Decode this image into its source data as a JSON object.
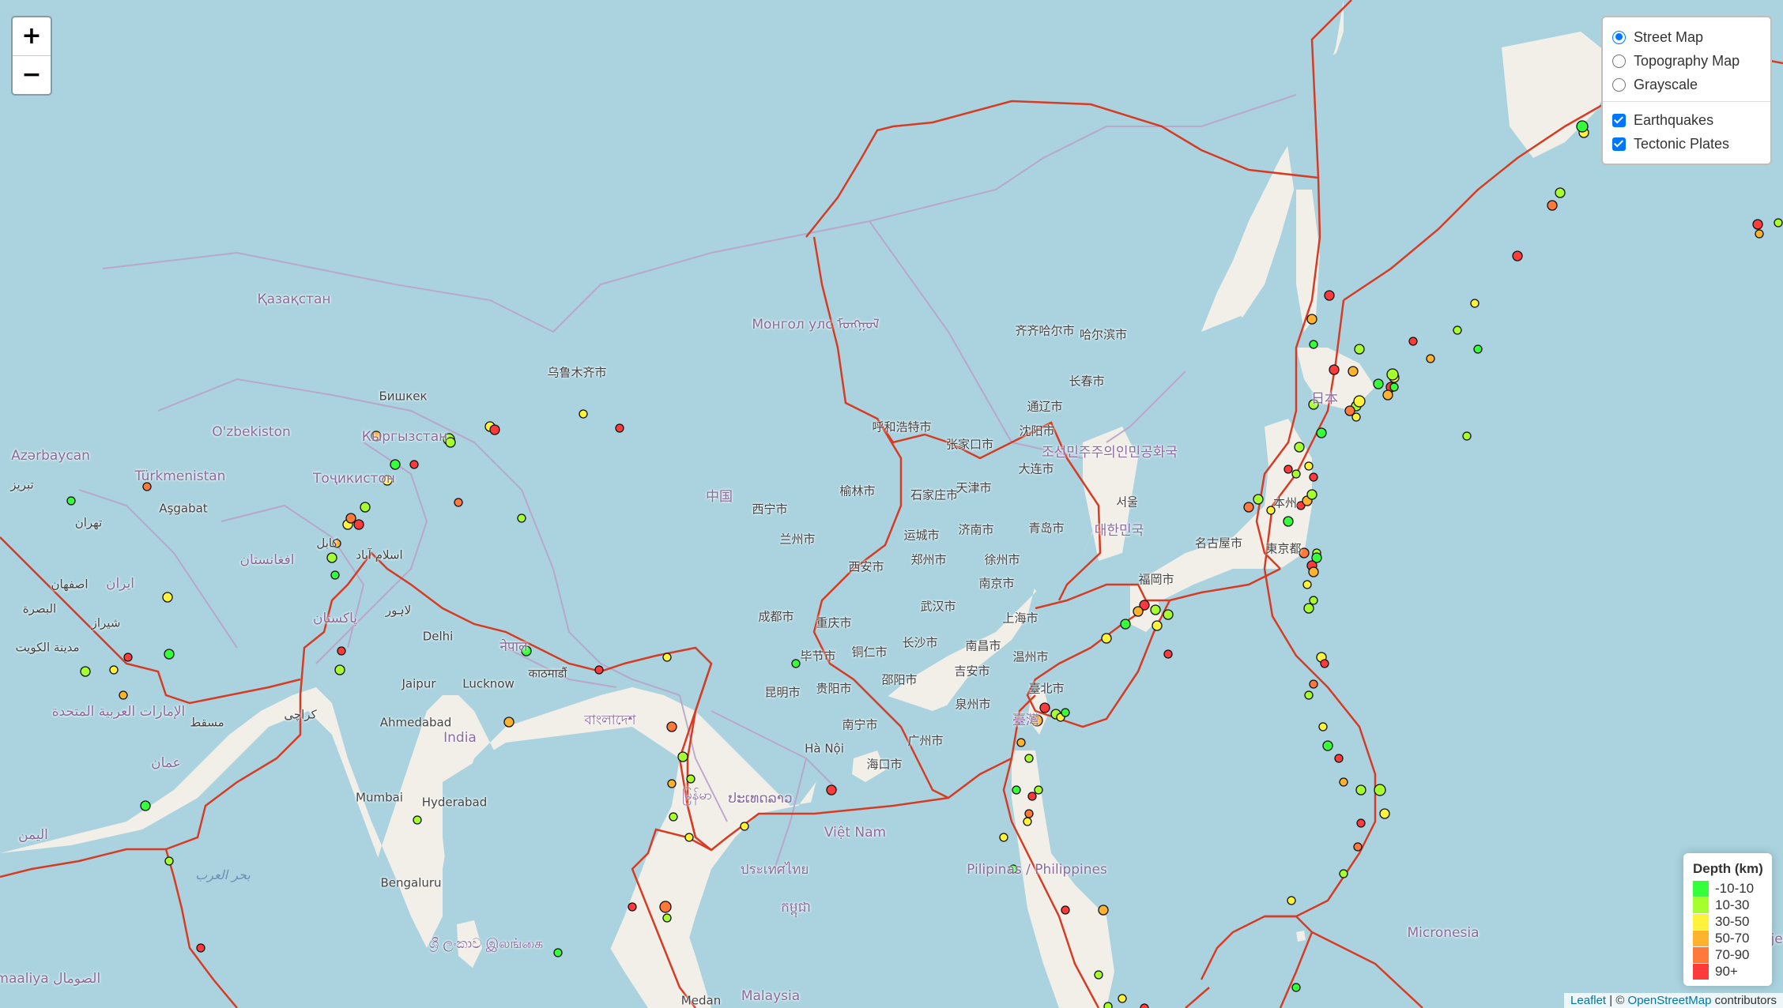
{
  "zoom": {
    "in_label": "+",
    "out_label": "−"
  },
  "layers": {
    "base": [
      {
        "label": "Street Map",
        "checked": true
      },
      {
        "label": "Topography Map",
        "checked": false
      },
      {
        "label": "Grayscale",
        "checked": false
      }
    ],
    "overlays": [
      {
        "label": "Earthquakes",
        "checked": true
      },
      {
        "label": "Tectonic Plates",
        "checked": true
      }
    ]
  },
  "legend": {
    "title": "Depth (km)",
    "items": [
      {
        "label": "-10-10",
        "color": "#34ff3a"
      },
      {
        "label": "10-30",
        "color": "#a6ff2d"
      },
      {
        "label": "30-50",
        "color": "#fff23a"
      },
      {
        "label": "50-70",
        "color": "#ffb22c"
      },
      {
        "label": "70-90",
        "color": "#ff7a3a"
      },
      {
        "label": "90+",
        "color": "#ff3a3a"
      }
    ]
  },
  "attribution": {
    "leaflet": "Leaflet",
    "separator": " | © ",
    "osm": "OpenStreetMap",
    "suffix": " contributors"
  },
  "colors": {
    "land": "#f2efe9",
    "water": "#aad3df",
    "plates": "#d63c24",
    "borders": "#b9a3c8"
  },
  "map_labels": [
    {
      "text": "Қазақстан",
      "cls": "country"
    },
    {
      "text": "Монгол улс ᠮᠣᠩᠭᠣᠯ",
      "cls": "country"
    },
    {
      "text": "中国",
      "cls": "country"
    },
    {
      "text": "O'zbekiston",
      "cls": "country"
    },
    {
      "text": "Türkmenistan",
      "cls": "country"
    },
    {
      "text": "Azərbaycan",
      "cls": "country"
    },
    {
      "text": "Кыргызстан",
      "cls": "country"
    },
    {
      "text": "Тоҷикистон",
      "cls": "country"
    },
    {
      "text": "افغانستان",
      "cls": "country"
    },
    {
      "text": "ایران",
      "cls": "country"
    },
    {
      "text": "پاکستان",
      "cls": "country"
    },
    {
      "text": "India",
      "cls": "country"
    },
    {
      "text": "नेपाल",
      "cls": "country"
    },
    {
      "text": "বাংলাদেশ",
      "cls": "country"
    },
    {
      "text": "မြန်မာ",
      "cls": "country"
    },
    {
      "text": "ປະເທດລາວ",
      "cls": "country"
    },
    {
      "text": "ประเทศไทย",
      "cls": "country"
    },
    {
      "text": "Việt Nam",
      "cls": "country"
    },
    {
      "text": "កម្ពុជា",
      "cls": "country"
    },
    {
      "text": "Malaysia",
      "cls": "country"
    },
    {
      "text": "Pilipinas / Philippines",
      "cls": "country"
    },
    {
      "text": "日本",
      "cls": "country"
    },
    {
      "text": "조선민주주의인민공화국",
      "cls": "country"
    },
    {
      "text": "대한민국",
      "cls": "country"
    },
    {
      "text": "臺灣",
      "cls": "country"
    },
    {
      "text": "Micronesia",
      "cls": "country"
    },
    {
      "text": "Majel",
      "cls": "country"
    },
    {
      "text": "الإمارات العربية المتحدة",
      "cls": "country"
    },
    {
      "text": "عمان",
      "cls": "country"
    },
    {
      "text": "اليمن",
      "cls": "country"
    },
    {
      "text": "Soomaaliya الصومال",
      "cls": "country"
    },
    {
      "text": "ශ්‍රී ලංකාව இலங்கை",
      "cls": "country"
    },
    {
      "text": "بحر العرب",
      "cls": "water"
    },
    {
      "text": "乌鲁木齐市",
      "cls": ""
    },
    {
      "text": "Бишкек",
      "cls": ""
    },
    {
      "text": "Aşgabat",
      "cls": ""
    },
    {
      "text": "تهران",
      "cls": ""
    },
    {
      "text": "تبریز",
      "cls": ""
    },
    {
      "text": "اصفهان",
      "cls": ""
    },
    {
      "text": "شیراز",
      "cls": ""
    },
    {
      "text": "البصرة",
      "cls": ""
    },
    {
      "text": "مدينة الكويت",
      "cls": ""
    },
    {
      "text": "مسقط",
      "cls": ""
    },
    {
      "text": "کابل",
      "cls": ""
    },
    {
      "text": "اسلام آباد",
      "cls": ""
    },
    {
      "text": "لاہور",
      "cls": ""
    },
    {
      "text": "کراچی",
      "cls": ""
    },
    {
      "text": "Delhi",
      "cls": ""
    },
    {
      "text": "Jaipur",
      "cls": ""
    },
    {
      "text": "Lucknow",
      "cls": ""
    },
    {
      "text": "Ahmedabad",
      "cls": ""
    },
    {
      "text": "Mumbai",
      "cls": ""
    },
    {
      "text": "Hyderabad",
      "cls": ""
    },
    {
      "text": "Bengaluru",
      "cls": ""
    },
    {
      "text": "काठमाडौं",
      "cls": ""
    },
    {
      "text": "西宁市",
      "cls": ""
    },
    {
      "text": "兰州市",
      "cls": ""
    },
    {
      "text": "成都市",
      "cls": ""
    },
    {
      "text": "重庆市",
      "cls": ""
    },
    {
      "text": "昆明市",
      "cls": ""
    },
    {
      "text": "毕节市",
      "cls": ""
    },
    {
      "text": "贵阳市",
      "cls": ""
    },
    {
      "text": "铜仁市",
      "cls": ""
    },
    {
      "text": "邵阳市",
      "cls": ""
    },
    {
      "text": "南宁市",
      "cls": ""
    },
    {
      "text": "海口市",
      "cls": ""
    },
    {
      "text": "Hà Nội",
      "cls": ""
    },
    {
      "text": "广州市",
      "cls": ""
    },
    {
      "text": "长沙市",
      "cls": ""
    },
    {
      "text": "武汉市",
      "cls": ""
    },
    {
      "text": "南昌市",
      "cls": ""
    },
    {
      "text": "吉安市",
      "cls": ""
    },
    {
      "text": "泉州市",
      "cls": ""
    },
    {
      "text": "温州市",
      "cls": ""
    },
    {
      "text": "上海市",
      "cls": ""
    },
    {
      "text": "南京市",
      "cls": ""
    },
    {
      "text": "徐州市",
      "cls": ""
    },
    {
      "text": "郑州市",
      "cls": ""
    },
    {
      "text": "西安市",
      "cls": ""
    },
    {
      "text": "运城市",
      "cls": ""
    },
    {
      "text": "榆林市",
      "cls": ""
    },
    {
      "text": "石家庄市",
      "cls": ""
    },
    {
      "text": "天津市",
      "cls": ""
    },
    {
      "text": "济南市",
      "cls": ""
    },
    {
      "text": "青岛市",
      "cls": ""
    },
    {
      "text": "大连市",
      "cls": ""
    },
    {
      "text": "沈阳市",
      "cls": ""
    },
    {
      "text": "通辽市",
      "cls": ""
    },
    {
      "text": "长春市",
      "cls": ""
    },
    {
      "text": "齐齐哈尔市",
      "cls": ""
    },
    {
      "text": "哈尔滨市",
      "cls": ""
    },
    {
      "text": "呼和浩特市",
      "cls": ""
    },
    {
      "text": "张家口市",
      "cls": ""
    },
    {
      "text": "臺北市",
      "cls": ""
    },
    {
      "text": "서울",
      "cls": ""
    },
    {
      "text": "福岡市",
      "cls": ""
    },
    {
      "text": "名古屋市",
      "cls": ""
    },
    {
      "text": "東京都",
      "cls": ""
    },
    {
      "text": "本州",
      "cls": ""
    },
    {
      "text": "Medan",
      "cls": ""
    }
  ],
  "earthquakes": [
    {
      "depth": 5
    },
    {
      "depth": 12
    },
    {
      "depth": 35
    },
    {
      "depth": 95
    },
    {
      "depth": 55
    },
    {
      "depth": 8
    },
    {
      "depth": 20
    },
    {
      "depth": 100
    },
    {
      "depth": 75
    },
    {
      "depth": 40
    },
    {
      "depth": 3
    },
    {
      "depth": 15
    },
    {
      "depth": 110
    },
    {
      "depth": 60
    },
    {
      "depth": 28
    },
    {
      "depth": 9
    },
    {
      "depth": 45
    },
    {
      "depth": 150
    },
    {
      "depth": 80
    },
    {
      "depth": 18
    },
    {
      "depth": 33
    },
    {
      "depth": 6
    },
    {
      "depth": 120
    },
    {
      "depth": 65
    },
    {
      "depth": 25
    },
    {
      "depth": 10
    },
    {
      "depth": 48
    },
    {
      "depth": 200
    },
    {
      "depth": 72
    },
    {
      "depth": 14
    },
    {
      "depth": 2
    },
    {
      "depth": 38
    },
    {
      "depth": 92
    },
    {
      "depth": 58
    },
    {
      "depth": 22
    },
    {
      "depth": 7
    },
    {
      "depth": 130
    },
    {
      "depth": 42
    },
    {
      "depth": 85
    },
    {
      "depth": 16
    },
    {
      "depth": 31
    },
    {
      "depth": 4
    },
    {
      "depth": 105
    },
    {
      "depth": 53
    },
    {
      "depth": 26
    },
    {
      "depth": 11
    },
    {
      "depth": 36
    },
    {
      "depth": 300
    },
    {
      "depth": 78
    },
    {
      "depth": 19
    },
    {
      "depth": 44
    },
    {
      "depth": 1
    },
    {
      "depth": 98
    },
    {
      "depth": 62
    },
    {
      "depth": 24
    },
    {
      "depth": 13
    },
    {
      "depth": 49
    },
    {
      "depth": 140
    },
    {
      "depth": 68
    },
    {
      "depth": 17
    },
    {
      "depth": 34
    },
    {
      "depth": 5
    },
    {
      "depth": 115
    },
    {
      "depth": 57
    },
    {
      "depth": 29
    },
    {
      "depth": 9
    },
    {
      "depth": 41
    },
    {
      "depth": 250
    },
    {
      "depth": 83
    },
    {
      "depth": 21
    },
    {
      "depth": 37
    },
    {
      "depth": 8
    },
    {
      "depth": 125
    },
    {
      "depth": 51
    },
    {
      "depth": 27
    },
    {
      "depth": 12
    },
    {
      "depth": 46
    },
    {
      "depth": 170
    },
    {
      "depth": 74
    },
    {
      "depth": 15
    },
    {
      "depth": 32
    },
    {
      "depth": 3
    },
    {
      "depth": 102
    },
    {
      "depth": 59
    },
    {
      "depth": 23
    },
    {
      "depth": 10
    },
    {
      "depth": 43
    },
    {
      "depth": 160
    },
    {
      "depth": 71
    },
    {
      "depth": 18
    },
    {
      "depth": 35
    },
    {
      "depth": 6
    },
    {
      "depth": 118
    },
    {
      "depth": 54
    },
    {
      "depth": 26
    },
    {
      "depth": 11
    },
    {
      "depth": 39
    },
    {
      "depth": 210
    },
    {
      "depth": 88
    },
    {
      "depth": 20
    },
    {
      "depth": 30
    },
    {
      "depth": 7
    },
    {
      "depth": 135
    },
    {
      "depth": 52
    },
    {
      "depth": 25
    },
    {
      "depth": 14
    },
    {
      "depth": 47
    },
    {
      "depth": 180
    },
    {
      "depth": 76
    },
    {
      "depth": 16
    },
    {
      "depth": 33
    },
    {
      "depth": 4
    },
    {
      "depth": 108
    },
    {
      "depth": 61
    },
    {
      "depth": 22
    },
    {
      "depth": 9
    },
    {
      "depth": 40
    },
    {
      "depth": 145
    },
    {
      "depth": 69
    },
    {
      "depth": 19
    }
  ]
}
